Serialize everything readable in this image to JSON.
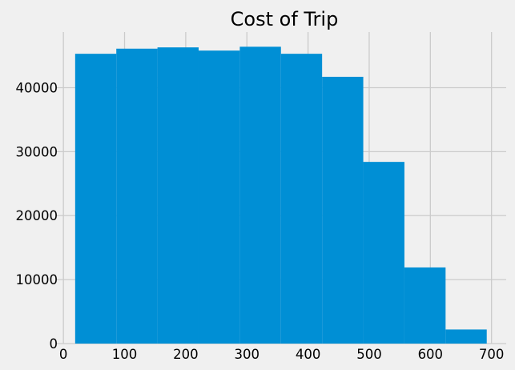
{
  "chart_data": {
    "type": "bar",
    "subtype": "histogram",
    "title": "Cost of Trip",
    "xlabel": "",
    "ylabel": "",
    "bin_edges": [
      19.2,
      86.5,
      153.8,
      221.1,
      288.4,
      355.7,
      423.0,
      490.3,
      557.6,
      624.9,
      692.2
    ],
    "values": [
      45300,
      46100,
      46300,
      45800,
      46400,
      45300,
      41700,
      28400,
      11900,
      2200
    ],
    "xlim": [
      -12,
      724
    ],
    "ylim": [
      0,
      48700
    ],
    "x_ticks": [
      0,
      100,
      200,
      300,
      400,
      500,
      600,
      700
    ],
    "x_tick_labels": [
      "0",
      "100",
      "200",
      "300",
      "400",
      "500",
      "600",
      "700"
    ],
    "y_ticks": [
      0,
      10000,
      20000,
      30000,
      40000
    ],
    "y_tick_labels": [
      "0",
      "10000",
      "20000",
      "30000",
      "40000"
    ],
    "grid": true,
    "bar_color": "#008fd5",
    "background_color": "#f0f0f0",
    "grid_color": "#cbcbcb"
  }
}
